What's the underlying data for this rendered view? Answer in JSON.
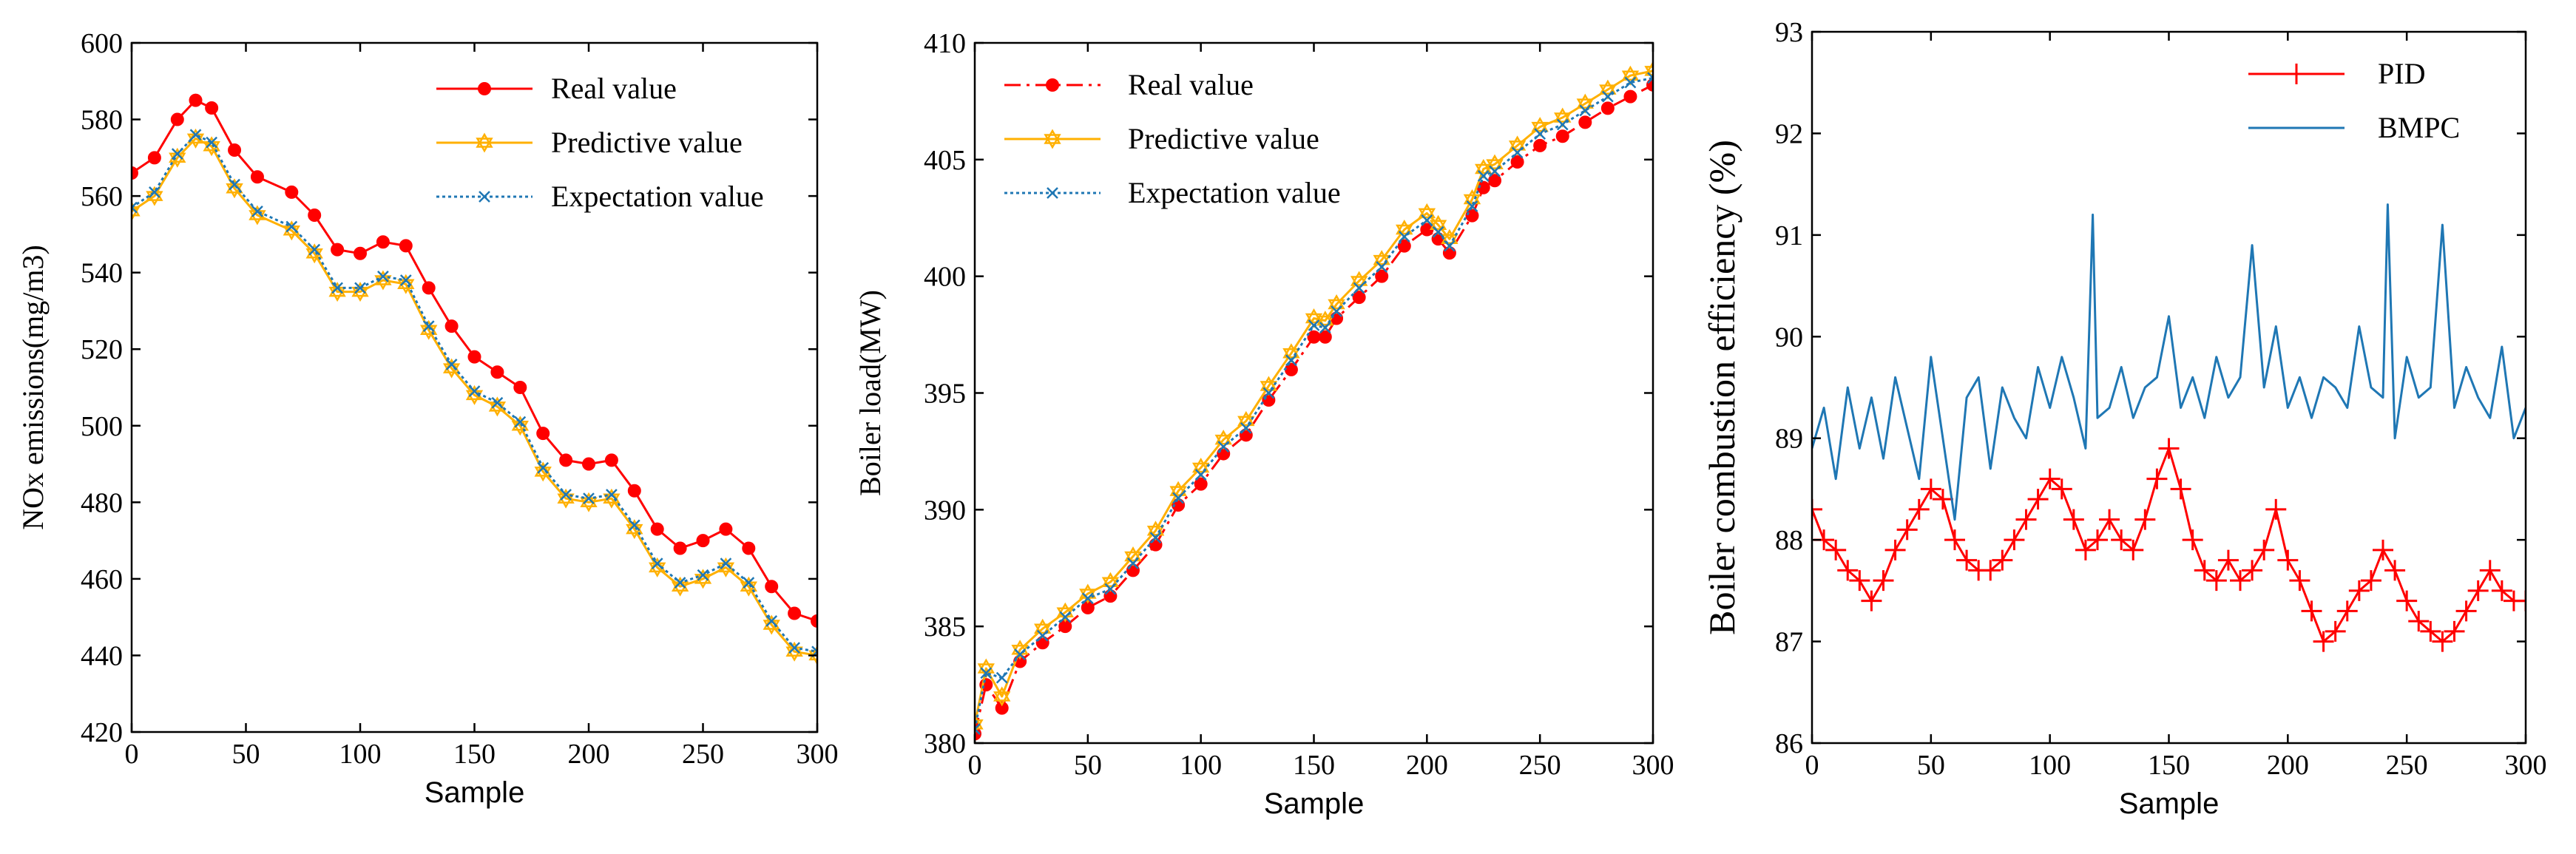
{
  "chart_data": [
    {
      "type": "line",
      "xlabel": "Sample",
      "ylabel": "NOx emissions(mg/m3)",
      "xlim": [
        0,
        300
      ],
      "ylim": [
        420,
        600
      ],
      "xticks": [
        0,
        50,
        100,
        150,
        200,
        250,
        300
      ],
      "yticks": [
        420,
        440,
        460,
        480,
        500,
        520,
        540,
        560,
        580,
        600
      ],
      "legend_position": "top-right",
      "series": [
        {
          "name": "Real value",
          "color": "#ff0000",
          "marker": "circle",
          "line": "solid",
          "x": [
            0,
            10,
            20,
            28,
            35,
            45,
            55,
            70,
            80,
            90,
            100,
            110,
            120,
            130,
            140,
            150,
            160,
            170,
            180,
            190,
            200,
            210,
            220,
            230,
            240,
            250,
            260,
            270,
            280,
            290,
            300
          ],
          "y": [
            566,
            570,
            580,
            585,
            583,
            572,
            565,
            561,
            555,
            546,
            545,
            548,
            547,
            536,
            526,
            518,
            514,
            510,
            498,
            491,
            490,
            491,
            483,
            473,
            468,
            470,
            473,
            468,
            458,
            451,
            449
          ]
        },
        {
          "name": "Predictive value",
          "color": "#ffb000",
          "marker": "hexagram",
          "line": "solid",
          "x": [
            0,
            10,
            20,
            28,
            35,
            45,
            55,
            70,
            80,
            90,
            100,
            110,
            120,
            130,
            140,
            150,
            160,
            170,
            180,
            190,
            200,
            210,
            220,
            230,
            240,
            250,
            260,
            270,
            280,
            290,
            300
          ],
          "y": [
            556,
            560,
            570,
            575,
            573,
            562,
            555,
            551,
            545,
            535,
            535,
            538,
            537,
            525,
            515,
            508,
            505,
            500,
            488,
            481,
            480,
            481,
            473,
            463,
            458,
            460,
            463,
            458,
            448,
            441,
            440
          ]
        },
        {
          "name": "Expectation value",
          "color": "#1f77b4",
          "marker": "x",
          "line": "dotted",
          "x": [
            0,
            10,
            20,
            28,
            35,
            45,
            55,
            70,
            80,
            90,
            100,
            110,
            120,
            130,
            140,
            150,
            160,
            170,
            180,
            190,
            200,
            210,
            220,
            230,
            240,
            250,
            260,
            270,
            280,
            290,
            300
          ],
          "y": [
            557,
            561,
            571,
            576,
            574,
            563,
            556,
            552,
            546,
            536,
            536,
            539,
            538,
            526,
            516,
            509,
            506,
            501,
            489,
            482,
            481,
            482,
            474,
            464,
            459,
            461,
            464,
            459,
            449,
            442,
            441
          ]
        }
      ]
    },
    {
      "type": "line",
      "xlabel": "Sample",
      "ylabel": "Boiler load(MW)",
      "xlim": [
        0,
        300
      ],
      "ylim": [
        380,
        410
      ],
      "xticks": [
        0,
        50,
        100,
        150,
        200,
        250,
        300
      ],
      "yticks": [
        380,
        385,
        390,
        395,
        400,
        405,
        410
      ],
      "legend_position": "top-left",
      "series": [
        {
          "name": "Real value",
          "color": "#ff0000",
          "marker": "circle",
          "line": "dashdot",
          "x": [
            0,
            5,
            12,
            20,
            30,
            40,
            50,
            60,
            70,
            80,
            90,
            100,
            110,
            120,
            130,
            140,
            150,
            155,
            160,
            170,
            180,
            190,
            200,
            205,
            210,
            220,
            225,
            230,
            240,
            250,
            260,
            270,
            280,
            290,
            300
          ],
          "y": [
            380.4,
            382.5,
            381.5,
            383.5,
            384.3,
            385.0,
            385.8,
            386.3,
            387.4,
            388.5,
            390.2,
            391.1,
            392.4,
            393.2,
            394.7,
            396.0,
            397.4,
            397.4,
            398.2,
            399.1,
            400.0,
            401.3,
            402.0,
            401.6,
            401.0,
            402.6,
            403.8,
            404.1,
            404.9,
            405.6,
            406.0,
            406.6,
            407.2,
            407.7,
            408.2
          ]
        },
        {
          "name": "Predictive value",
          "color": "#ffb000",
          "marker": "hexagram",
          "line": "solid",
          "x": [
            0,
            5,
            12,
            20,
            30,
            40,
            50,
            60,
            70,
            80,
            90,
            100,
            110,
            120,
            130,
            140,
            150,
            155,
            160,
            170,
            180,
            190,
            200,
            205,
            210,
            220,
            225,
            230,
            240,
            250,
            260,
            270,
            280,
            290,
            300
          ],
          "y": [
            380.8,
            383.2,
            382.0,
            384.0,
            384.9,
            385.6,
            386.4,
            386.9,
            388.0,
            389.1,
            390.8,
            391.8,
            393.0,
            393.8,
            395.3,
            396.7,
            398.2,
            398.1,
            398.8,
            399.8,
            400.7,
            402.0,
            402.7,
            402.2,
            401.6,
            403.3,
            404.6,
            404.8,
            405.6,
            406.4,
            406.8,
            407.4,
            408.0,
            408.6,
            408.8
          ]
        },
        {
          "name": "Expectation value",
          "color": "#1f77b4",
          "marker": "x",
          "line": "dotted",
          "x": [
            0,
            5,
            12,
            20,
            30,
            40,
            50,
            60,
            70,
            80,
            90,
            100,
            110,
            120,
            130,
            140,
            150,
            155,
            160,
            170,
            180,
            190,
            200,
            205,
            210,
            220,
            225,
            230,
            240,
            250,
            260,
            270,
            280,
            290,
            300
          ],
          "y": [
            380.6,
            383.0,
            382.8,
            383.8,
            384.6,
            385.4,
            386.2,
            386.6,
            387.7,
            388.8,
            390.5,
            391.5,
            392.7,
            393.5,
            395.0,
            396.4,
            397.9,
            397.8,
            398.5,
            399.5,
            400.4,
            401.7,
            402.4,
            401.9,
            401.3,
            403.0,
            404.3,
            404.5,
            405.3,
            406.1,
            406.5,
            407.1,
            407.7,
            408.3,
            408.5
          ]
        }
      ]
    },
    {
      "type": "line",
      "xlabel": "Sample",
      "ylabel": "Boiler combustion efficiency (%)",
      "xlim": [
        0,
        300
      ],
      "ylim": [
        86,
        93
      ],
      "xticks": [
        0,
        50,
        100,
        150,
        200,
        250,
        300
      ],
      "yticks": [
        86,
        87,
        88,
        89,
        90,
        91,
        92,
        93
      ],
      "legend_position": "top-right",
      "series": [
        {
          "name": "PID",
          "color": "#ff0000",
          "marker": "plus",
          "line": "solid",
          "x": [
            0,
            5,
            10,
            15,
            20,
            25,
            30,
            35,
            40,
            45,
            50,
            55,
            60,
            65,
            70,
            75,
            80,
            85,
            90,
            95,
            100,
            105,
            110,
            115,
            120,
            125,
            130,
            135,
            140,
            145,
            150,
            155,
            160,
            165,
            170,
            175,
            180,
            185,
            190,
            195,
            200,
            205,
            210,
            215,
            220,
            225,
            230,
            235,
            240,
            245,
            250,
            255,
            260,
            265,
            270,
            275,
            280,
            285,
            290,
            295,
            300
          ],
          "y": [
            88.3,
            88.0,
            87.9,
            87.7,
            87.6,
            87.4,
            87.6,
            87.9,
            88.1,
            88.3,
            88.5,
            88.4,
            88.0,
            87.8,
            87.7,
            87.7,
            87.8,
            88.0,
            88.2,
            88.4,
            88.6,
            88.5,
            88.2,
            87.9,
            88.0,
            88.2,
            88.0,
            87.9,
            88.2,
            88.6,
            88.9,
            88.5,
            88.0,
            87.7,
            87.6,
            87.8,
            87.6,
            87.7,
            87.9,
            88.3,
            87.8,
            87.6,
            87.3,
            87.0,
            87.1,
            87.3,
            87.5,
            87.6,
            87.9,
            87.7,
            87.4,
            87.2,
            87.1,
            87.0,
            87.1,
            87.3,
            87.5,
            87.7,
            87.5,
            87.4,
            87.4
          ]
        },
        {
          "name": "BMPC",
          "color": "#1f77b4",
          "marker": "none",
          "line": "solid",
          "x": [
            0,
            5,
            10,
            15,
            20,
            25,
            30,
            35,
            40,
            45,
            50,
            55,
            60,
            65,
            70,
            75,
            80,
            85,
            90,
            95,
            100,
            105,
            110,
            115,
            118,
            120,
            125,
            130,
            135,
            140,
            145,
            150,
            155,
            160,
            165,
            170,
            175,
            180,
            185,
            190,
            195,
            200,
            205,
            210,
            215,
            220,
            225,
            230,
            235,
            240,
            242,
            245,
            250,
            255,
            260,
            265,
            270,
            275,
            280,
            285,
            290,
            295,
            300
          ],
          "y": [
            88.9,
            89.3,
            88.6,
            89.5,
            88.9,
            89.4,
            88.8,
            89.6,
            89.1,
            88.6,
            89.8,
            89.0,
            88.2,
            89.4,
            89.6,
            88.7,
            89.5,
            89.2,
            89.0,
            89.7,
            89.3,
            89.8,
            89.4,
            88.9,
            91.2,
            89.2,
            89.3,
            89.7,
            89.2,
            89.5,
            89.6,
            90.2,
            89.3,
            89.6,
            89.2,
            89.8,
            89.4,
            89.6,
            90.9,
            89.5,
            90.1,
            89.3,
            89.6,
            89.2,
            89.6,
            89.5,
            89.3,
            90.1,
            89.5,
            89.4,
            91.3,
            89.0,
            89.8,
            89.4,
            89.5,
            91.1,
            89.3,
            89.7,
            89.4,
            89.2,
            89.9,
            89.0,
            89.3
          ]
        }
      ]
    }
  ]
}
